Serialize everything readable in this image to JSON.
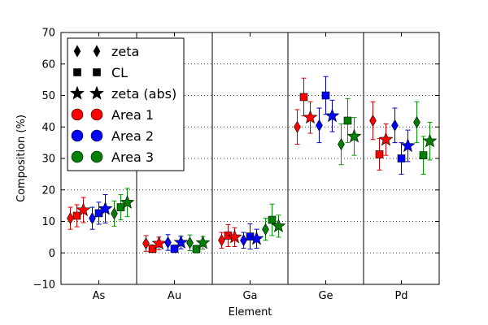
{
  "chart_data": {
    "type": "scatter",
    "xlabel": "Element",
    "ylabel": "Composition (%)",
    "ylim": [
      -10,
      70
    ],
    "y_ticks": [
      -10,
      0,
      10,
      20,
      30,
      40,
      50,
      60,
      70
    ],
    "categories": [
      "As",
      "Au",
      "Ga",
      "Ge",
      "Pd"
    ],
    "grid": "horizontal dotted",
    "legend_position": "upper-left",
    "methods": [
      {
        "key": "zeta",
        "label": "zeta",
        "marker": "diamond"
      },
      {
        "key": "cl",
        "label": "CL",
        "marker": "square"
      },
      {
        "key": "zeta_abs",
        "label": "zeta (abs)",
        "marker": "star"
      }
    ],
    "areas": [
      {
        "key": "area1",
        "label": "Area 1",
        "color": "#ff0000",
        "err_color": "#cc0000"
      },
      {
        "key": "area2",
        "label": "Area 2",
        "color": "#0000ff",
        "err_color": "#0000cc"
      },
      {
        "key": "area3",
        "label": "Area 3",
        "color": "#008000",
        "err_color": "#009900"
      }
    ],
    "points": [
      {
        "element": "As",
        "area": "area1",
        "method": "zeta",
        "y": 11,
        "err": 3.5
      },
      {
        "element": "As",
        "area": "area1",
        "method": "cl",
        "y": 11.8,
        "err": 3.5
      },
      {
        "element": "As",
        "area": "area1",
        "method": "zeta_abs",
        "y": 13.6,
        "err": 4
      },
      {
        "element": "As",
        "area": "area2",
        "method": "zeta",
        "y": 11,
        "err": 3.5
      },
      {
        "element": "As",
        "area": "area2",
        "method": "cl",
        "y": 12.6,
        "err": 3.5
      },
      {
        "element": "As",
        "area": "area2",
        "method": "zeta_abs",
        "y": 14,
        "err": 4.5
      },
      {
        "element": "As",
        "area": "area3",
        "method": "zeta",
        "y": 12.5,
        "err": 4
      },
      {
        "element": "As",
        "area": "area3",
        "method": "cl",
        "y": 14.5,
        "err": 4
      },
      {
        "element": "As",
        "area": "area3",
        "method": "zeta_abs",
        "y": 16,
        "err": 4.5
      },
      {
        "element": "Au",
        "area": "area1",
        "method": "zeta",
        "y": 3,
        "err": 2.5
      },
      {
        "element": "Au",
        "area": "area1",
        "method": "cl",
        "y": 1.3,
        "err": 1.2
      },
      {
        "element": "Au",
        "area": "area1",
        "method": "zeta_abs",
        "y": 3,
        "err": 2
      },
      {
        "element": "Au",
        "area": "area2",
        "method": "zeta",
        "y": 3.3,
        "err": 2.5
      },
      {
        "element": "Au",
        "area": "area2",
        "method": "cl",
        "y": 1.3,
        "err": 1.2
      },
      {
        "element": "Au",
        "area": "area2",
        "method": "zeta_abs",
        "y": 3.3,
        "err": 2
      },
      {
        "element": "Au",
        "area": "area3",
        "method": "zeta",
        "y": 3.2,
        "err": 2.5
      },
      {
        "element": "Au",
        "area": "area3",
        "method": "cl",
        "y": 1.2,
        "err": 1.2
      },
      {
        "element": "Au",
        "area": "area3",
        "method": "zeta_abs",
        "y": 3.2,
        "err": 2
      },
      {
        "element": "Ga",
        "area": "area1",
        "method": "zeta",
        "y": 4,
        "err": 2.5
      },
      {
        "element": "Ga",
        "area": "area1",
        "method": "cl",
        "y": 5.5,
        "err": 3.5
      },
      {
        "element": "Ga",
        "area": "area1",
        "method": "zeta_abs",
        "y": 5,
        "err": 3
      },
      {
        "element": "Ga",
        "area": "area2",
        "method": "zeta",
        "y": 4,
        "err": 2.5
      },
      {
        "element": "Ga",
        "area": "area2",
        "method": "cl",
        "y": 5.2,
        "err": 4
      },
      {
        "element": "Ga",
        "area": "area2",
        "method": "zeta_abs",
        "y": 4.5,
        "err": 3
      },
      {
        "element": "Ga",
        "area": "area3",
        "method": "zeta",
        "y": 7.5,
        "err": 3.5
      },
      {
        "element": "Ga",
        "area": "area3",
        "method": "cl",
        "y": 10.5,
        "err": 5
      },
      {
        "element": "Ga",
        "area": "area3",
        "method": "zeta_abs",
        "y": 8.5,
        "err": 3.5
      },
      {
        "element": "Ge",
        "area": "area1",
        "method": "zeta",
        "y": 40,
        "err": 5.5
      },
      {
        "element": "Ge",
        "area": "area1",
        "method": "cl",
        "y": 49.5,
        "err": 6
      },
      {
        "element": "Ge",
        "area": "area1",
        "method": "zeta_abs",
        "y": 43,
        "err": 5
      },
      {
        "element": "Ge",
        "area": "area2",
        "method": "zeta",
        "y": 40.5,
        "err": 5.5
      },
      {
        "element": "Ge",
        "area": "area2",
        "method": "cl",
        "y": 50,
        "err": 6
      },
      {
        "element": "Ge",
        "area": "area2",
        "method": "zeta_abs",
        "y": 43.5,
        "err": 5
      },
      {
        "element": "Ge",
        "area": "area3",
        "method": "zeta",
        "y": 34.5,
        "err": 6.5
      },
      {
        "element": "Ge",
        "area": "area3",
        "method": "cl",
        "y": 42,
        "err": 7
      },
      {
        "element": "Ge",
        "area": "area3",
        "method": "zeta_abs",
        "y": 37,
        "err": 6
      },
      {
        "element": "Pd",
        "area": "area1",
        "method": "zeta",
        "y": 42,
        "err": 6
      },
      {
        "element": "Pd",
        "area": "area1",
        "method": "cl",
        "y": 31.3,
        "err": 5
      },
      {
        "element": "Pd",
        "area": "area1",
        "method": "zeta_abs",
        "y": 36,
        "err": 5
      },
      {
        "element": "Pd",
        "area": "area2",
        "method": "zeta",
        "y": 40.5,
        "err": 5.5
      },
      {
        "element": "Pd",
        "area": "area2",
        "method": "cl",
        "y": 30,
        "err": 5
      },
      {
        "element": "Pd",
        "area": "area2",
        "method": "zeta_abs",
        "y": 34,
        "err": 5
      },
      {
        "element": "Pd",
        "area": "area3",
        "method": "zeta",
        "y": 41.5,
        "err": 6.5
      },
      {
        "element": "Pd",
        "area": "area3",
        "method": "cl",
        "y": 31,
        "err": 6
      },
      {
        "element": "Pd",
        "area": "area3",
        "method": "zeta_abs",
        "y": 35.5,
        "err": 6
      }
    ]
  }
}
